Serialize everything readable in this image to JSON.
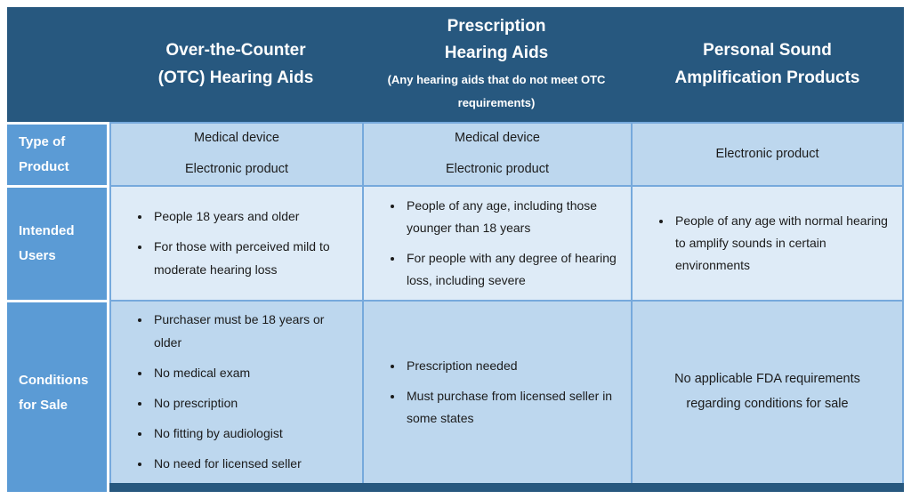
{
  "colors": {
    "header_bg": "#27587F",
    "label_bg": "#5B9BD5",
    "row_shade_dark": "#BDD7EE",
    "row_shade_light": "#DEEBF7",
    "grid_border": "#76A9DC",
    "bottom_bar": "#27587F",
    "header_text": "#FFFFFF",
    "body_text": "#1B1B1B",
    "page_bg": "#FFFFFF"
  },
  "table": {
    "column_headers": [
      {
        "id": "otc",
        "title_lines": [
          "Over-the-Counter",
          "(OTC) Hearing Aids"
        ],
        "subtitle": null
      },
      {
        "id": "prescription",
        "title_lines": [
          "Prescription",
          "Hearing Aids"
        ],
        "subtitle": "(Any hearing aids that do not meet OTC requirements)"
      },
      {
        "id": "psap",
        "title_lines": [
          "Personal Sound",
          "Amplification Products"
        ],
        "subtitle": null
      }
    ],
    "rows": [
      {
        "id": "type-of-product",
        "label": "Type of Product",
        "cells": [
          {
            "lines": [
              "Medical device",
              "Electronic product"
            ]
          },
          {
            "lines": [
              "Medical device",
              "Electronic product"
            ]
          },
          {
            "lines": [
              "Electronic product"
            ]
          }
        ]
      },
      {
        "id": "intended-users",
        "label": "Intended Users",
        "cells": [
          {
            "bullets": [
              "People 18 years and older",
              "For those with perceived mild to moderate hearing loss"
            ]
          },
          {
            "bullets": [
              "People of any age, including those younger than 18 years",
              "For people with any degree of hearing loss, including severe"
            ]
          },
          {
            "bullets": [
              "People of any age with normal hearing to amplify sounds in certain environments"
            ]
          }
        ]
      },
      {
        "id": "conditions-for-sale",
        "label": "Conditions for Sale",
        "cells": [
          {
            "bullets": [
              "Purchaser must be 18 years or older",
              "No medical exam",
              "No prescription",
              "No fitting by audiologist",
              "No need for licensed seller"
            ]
          },
          {
            "bullets": [
              "Prescription needed",
              "Must purchase from licensed seller in some states"
            ]
          },
          {
            "lines": [
              "No applicable FDA requirements regarding conditions for sale"
            ]
          }
        ]
      }
    ]
  }
}
